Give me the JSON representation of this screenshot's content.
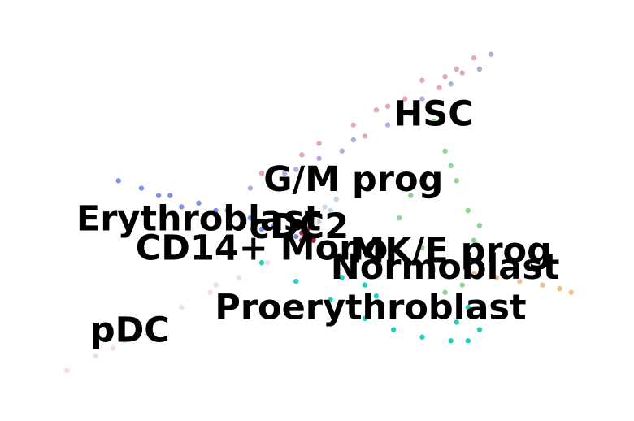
{
  "chart_data": {
    "type": "scatter",
    "title": "",
    "xlabel": "",
    "ylabel": "",
    "axes_visible": false,
    "grid": false,
    "legend": "none (labels placed on data)",
    "xlim": [
      0,
      100
    ],
    "ylim": [
      0,
      100
    ],
    "series": [
      {
        "name": "HSC",
        "color": "#e0a8b8",
        "label_at": [
          70.0,
          75.3
        ],
        "points": [
          [
            40,
            60
          ],
          [
            50,
            68
          ],
          [
            60,
            77
          ],
          [
            68,
            85
          ],
          [
            74,
            88
          ],
          [
            77,
            91
          ],
          [
            72,
            86
          ],
          [
            65,
            80
          ],
          [
            56,
            73
          ],
          [
            47,
            65
          ],
          [
            62,
            78
          ],
          [
            71,
            83
          ],
          [
            75,
            87
          ],
          [
            58,
            70
          ],
          [
            66,
            76
          ]
        ]
      },
      {
        "name": "G/M prog",
        "color": "#aab0e0",
        "label_at": [
          56.0,
          57.7
        ],
        "points": [
          [
            38,
            56
          ],
          [
            44,
            60
          ],
          [
            50,
            64
          ],
          [
            56,
            69
          ],
          [
            62,
            73
          ],
          [
            68,
            80
          ],
          [
            73,
            84
          ],
          [
            78,
            88
          ],
          [
            80,
            92
          ],
          [
            46,
            61
          ],
          [
            54,
            66
          ],
          [
            64,
            75
          ]
        ]
      },
      {
        "name": "MK/E prog",
        "color": "#8fd48f",
        "label_at": [
          73.0,
          38.6
        ],
        "points": [
          [
            70,
            74
          ],
          [
            72,
            66
          ],
          [
            74,
            58
          ],
          [
            76,
            50
          ],
          [
            77,
            42
          ],
          [
            78,
            36
          ],
          [
            75,
            30
          ],
          [
            72,
            28
          ],
          [
            68,
            40
          ],
          [
            66,
            54
          ],
          [
            64,
            48
          ],
          [
            73,
            62
          ],
          [
            78,
            46
          ],
          [
            70,
            34
          ]
        ]
      },
      {
        "name": "Normoblast",
        "color": "#f0bd8e",
        "label_at": [
          72.0,
          34.2
        ],
        "points": [
          [
            77,
            33
          ],
          [
            81,
            32
          ],
          [
            85,
            31
          ],
          [
            89,
            30
          ],
          [
            92,
            29
          ],
          [
            94,
            28
          ]
        ]
      },
      {
        "name": "Erythroblast",
        "color": "#8093e0",
        "label_at": [
          29.0,
          47.2
        ],
        "points": [
          [
            15,
            58
          ],
          [
            19,
            56
          ],
          [
            24,
            54
          ],
          [
            29,
            52
          ],
          [
            34,
            50
          ],
          [
            38,
            48
          ],
          [
            42,
            46
          ],
          [
            46,
            43
          ],
          [
            48,
            42
          ],
          [
            22,
            54
          ],
          [
            32,
            50
          ],
          [
            26,
            51
          ],
          [
            40,
            45
          ]
        ]
      },
      {
        "name": "Proerythroblast",
        "color": "#22cfc0",
        "label_at": [
          59.0,
          23.4
        ],
        "points": [
          [
            40,
            36
          ],
          [
            46,
            31
          ],
          [
            52,
            26
          ],
          [
            58,
            21
          ],
          [
            63,
            18
          ],
          [
            68,
            16
          ],
          [
            73,
            15
          ],
          [
            76,
            15
          ],
          [
            78,
            18
          ],
          [
            74,
            20
          ],
          [
            66,
            22
          ],
          [
            60,
            27
          ],
          [
            54,
            32
          ],
          [
            70,
            26
          ],
          [
            58,
            30
          ],
          [
            76,
            24
          ]
        ]
      },
      {
        "name": "cDC2",
        "color": "#a8185a",
        "label_at": [
          46.5,
          45.1
        ],
        "points": [
          [
            46,
            46
          ],
          [
            47,
            44
          ],
          [
            48,
            43
          ],
          [
            47,
            42
          ],
          [
            49,
            42
          ],
          [
            48,
            45
          ]
        ]
      },
      {
        "name": "CD14+ Mono",
        "color": "#c8d8e8",
        "label_at": [
          40.0,
          39.3
        ],
        "points": [
          [
            49,
            48
          ],
          [
            51,
            51
          ],
          [
            53,
            53
          ],
          [
            50,
            47
          ],
          [
            52,
            50
          ]
        ]
      },
      {
        "name": "pDC",
        "color": "#f0dde5",
        "label_at": [
          17.0,
          17.3
        ],
        "points": [
          [
            6,
            7
          ],
          [
            11,
            11
          ],
          [
            16,
            15
          ],
          [
            21,
            20
          ],
          [
            26,
            24
          ],
          [
            31,
            28
          ],
          [
            36,
            32
          ],
          [
            41,
            36
          ],
          [
            46,
            40
          ],
          [
            20,
            17
          ],
          [
            32,
            30
          ],
          [
            14,
            13
          ]
        ]
      }
    ]
  }
}
